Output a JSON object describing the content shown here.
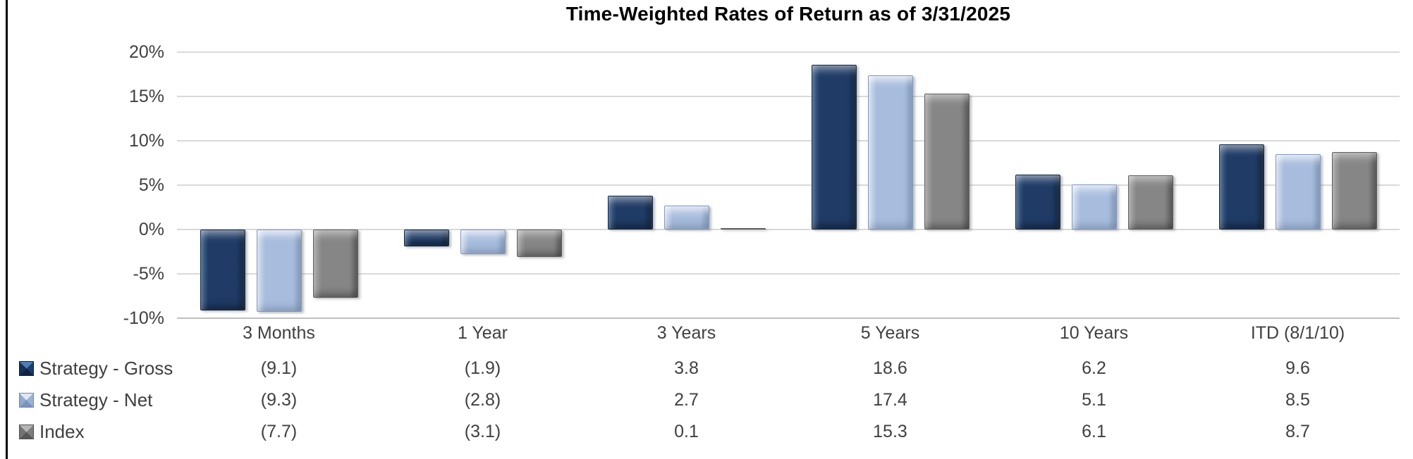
{
  "chart_data": {
    "type": "bar",
    "title": "Time-Weighted Rates of Return as of 3/31/2025",
    "categories": [
      "3 Months",
      "1 Year",
      "3 Years",
      "5 Years",
      "10 Years",
      "ITD (8/1/10)"
    ],
    "series": [
      {
        "name": "Strategy - Gross",
        "values": [
          -9.1,
          -1.9,
          3.8,
          18.6,
          6.2,
          9.6
        ],
        "display_values": [
          "(9.1)",
          "(1.9)",
          "3.8",
          "18.6",
          "6.2",
          "9.6"
        ],
        "color": "#1F3B66"
      },
      {
        "name": "Strategy - Net",
        "values": [
          -9.3,
          -2.8,
          2.7,
          17.4,
          5.1,
          8.5
        ],
        "display_values": [
          "(9.3)",
          "(2.8)",
          "2.7",
          "17.4",
          "5.1",
          "8.5"
        ],
        "color": "#A8BDDE"
      },
      {
        "name": "Index",
        "values": [
          -7.7,
          -3.1,
          0.1,
          15.3,
          6.1,
          8.7
        ],
        "display_values": [
          "(7.7)",
          "(3.1)",
          "0.1",
          "15.3",
          "6.1",
          "8.7"
        ],
        "color": "#858585"
      }
    ],
    "y_axis": {
      "min": -10,
      "max": 20,
      "step": 5,
      "tick_labels": [
        "20%",
        "15%",
        "10%",
        "5%",
        "0%",
        "-5%",
        "-10%"
      ]
    },
    "grid": true,
    "legend_position": "bottom-left",
    "value_table_below_axis": true
  },
  "colors": {
    "gridline": "#D9D9D9",
    "axis_line": "#BFBFBF",
    "label_text": "#404040",
    "title_text": "#000000"
  }
}
